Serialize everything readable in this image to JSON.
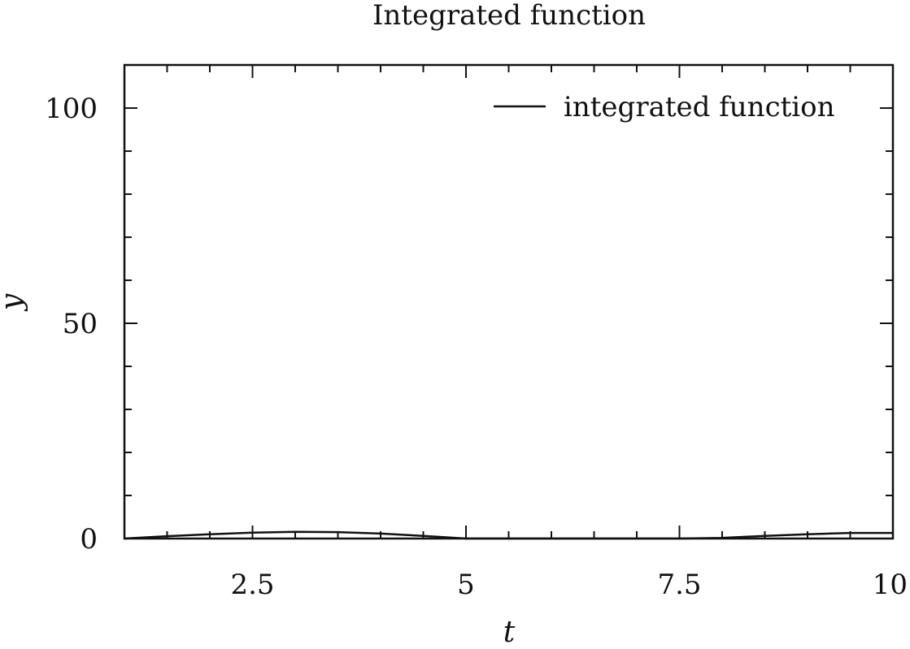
{
  "chart_data": {
    "type": "line",
    "title": "Integrated function",
    "xlabel": "t",
    "ylabel": "y",
    "xlim": [
      1,
      10
    ],
    "ylim": [
      0,
      100
    ],
    "x_ticks": [
      2.5,
      5,
      7.5,
      10
    ],
    "x_tick_labels": [
      "2.5",
      "5",
      "7.5",
      "10"
    ],
    "x_minor_step": 0.5,
    "y_ticks": [
      0,
      50,
      100
    ],
    "y_tick_labels": [
      "0",
      "50",
      "100"
    ],
    "y_minor_step": 10,
    "grid": false,
    "legend": {
      "position": "top-right"
    },
    "series": [
      {
        "name": "integrated function",
        "color": "#111111",
        "x": [
          1,
          1.5,
          2,
          2.5,
          3,
          3.5,
          4,
          4.5,
          5,
          5.5,
          6,
          6.5,
          7,
          7.5,
          8,
          8.5,
          9,
          9.5,
          10
        ],
        "y": [
          0,
          0.55,
          1.0,
          1.35,
          1.55,
          1.5,
          1.15,
          0.6,
          0,
          0,
          0,
          0,
          0,
          0,
          0.15,
          0.6,
          1.0,
          1.3,
          1.3
        ]
      }
    ]
  }
}
